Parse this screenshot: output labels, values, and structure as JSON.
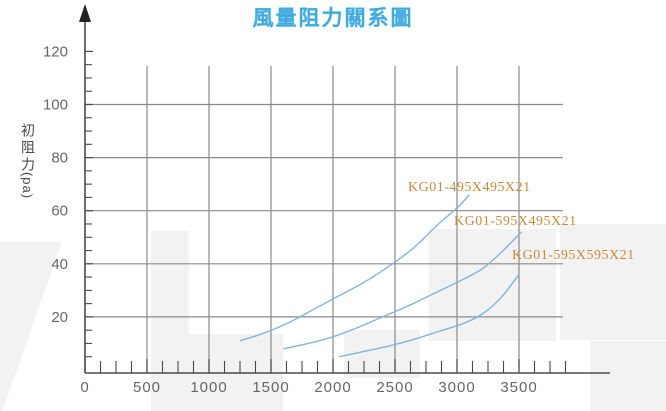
{
  "title": "風量阻力關系圖",
  "y_axis": {
    "label_cjk": "初阻力",
    "label_unit": "(pa)"
  },
  "colors": {
    "title_blue": "#41abdf",
    "curve_blue": "#82b5da",
    "label_orange": "#c9893d",
    "grid_gray": "#8a8a8a",
    "axis_gray": "#4a4a4a",
    "tick_text_gray": "#666666",
    "watermark_gray": "#f2f2f2"
  },
  "chart_data": {
    "type": "line",
    "title": "風量阻力關系圖",
    "xlabel": "",
    "ylabel": "初阻力 (pa)",
    "xlim": [
      0,
      3900
    ],
    "ylim": [
      0,
      130
    ],
    "x_tick_labels": [
      "0",
      "500",
      "1000",
      "1500",
      "2000",
      "2500",
      "3000",
      "3500"
    ],
    "x_tick_values": [
      0,
      500,
      1000,
      1500,
      2000,
      2500,
      3000,
      3500
    ],
    "x_minor_step": 125,
    "x_minor_max": 3875,
    "y_tick_labels": [
      "20",
      "40",
      "60",
      "80",
      "100",
      "120"
    ],
    "y_tick_values": [
      20,
      40,
      60,
      80,
      100,
      120
    ],
    "y_minor_step": 5,
    "y_minor_max": 115,
    "x_gridlines": [
      500,
      1000,
      1500,
      2000,
      2500,
      3000,
      3500
    ],
    "y_gridlines": [
      20,
      40,
      60,
      80,
      100
    ],
    "grid": "on",
    "legend_position": "inline-labels",
    "series": [
      {
        "name": "KG01-495X495X21",
        "points": [
          [
            1250,
            11
          ],
          [
            1450,
            14
          ],
          [
            1650,
            18
          ],
          [
            1850,
            23
          ],
          [
            2050,
            28
          ],
          [
            2250,
            33
          ],
          [
            2450,
            39
          ],
          [
            2650,
            46
          ],
          [
            2850,
            55
          ],
          [
            3000,
            61
          ],
          [
            3100,
            66
          ]
        ]
      },
      {
        "name": "KG01-595X495X21",
        "points": [
          [
            1600,
            8
          ],
          [
            1800,
            10
          ],
          [
            2000,
            12.5
          ],
          [
            2200,
            16
          ],
          [
            2400,
            20
          ],
          [
            2600,
            24
          ],
          [
            2800,
            28.5
          ],
          [
            3000,
            33
          ],
          [
            3200,
            38
          ],
          [
            3350,
            44
          ],
          [
            3520,
            52
          ]
        ]
      },
      {
        "name": "KG01-595X595X21",
        "points": [
          [
            2050,
            5
          ],
          [
            2250,
            7
          ],
          [
            2450,
            9
          ],
          [
            2650,
            11.5
          ],
          [
            2850,
            14.5
          ],
          [
            3050,
            17.5
          ],
          [
            3200,
            21
          ],
          [
            3350,
            27
          ],
          [
            3500,
            36
          ]
        ]
      }
    ]
  }
}
